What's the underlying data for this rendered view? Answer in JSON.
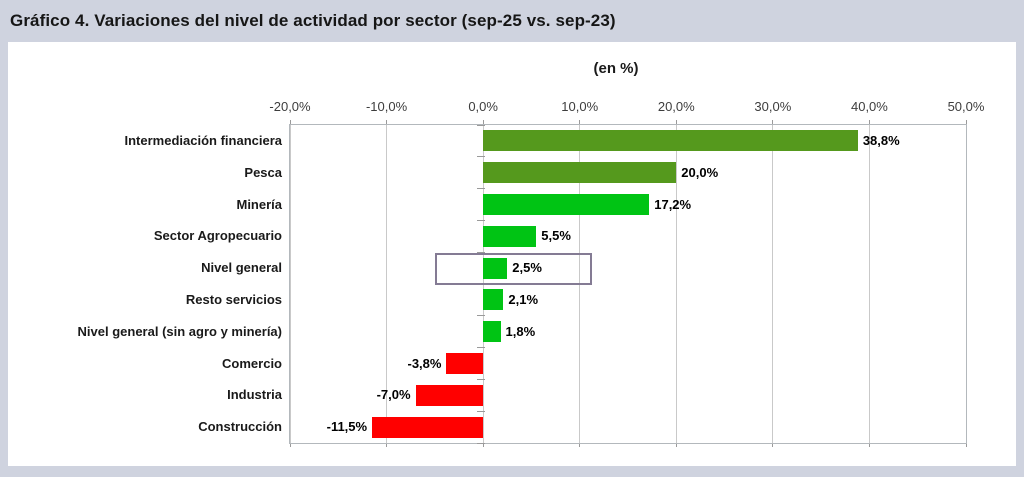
{
  "page": {
    "title": "Gráfico 4. Variaciones del nivel de actividad por sector (sep-25 vs. sep-23)",
    "background_color": "#cfd3df"
  },
  "chart_data": {
    "type": "bar",
    "orientation": "horizontal",
    "title": "Gráfico 4. Variaciones del nivel de actividad por sector (sep-25 vs. sep-23)",
    "subtitle": "(en %)",
    "categories": [
      "Intermediación financiera",
      "Pesca",
      "Minería",
      "Sector Agropecuario",
      "Nivel general",
      "Resto servicios",
      "Nivel general (sin agro y minería)",
      "Comercio",
      "Industria",
      "Construcción"
    ],
    "values": [
      38.8,
      20.0,
      17.2,
      5.5,
      2.5,
      2.1,
      1.8,
      -3.8,
      -7.0,
      -11.5
    ],
    "value_labels": [
      "38,8%",
      "20,0%",
      "17,2%",
      "5,5%",
      "2,5%",
      "2,1%",
      "1,8%",
      "-3,8%",
      "-7,0%",
      "-11,5%"
    ],
    "bar_colors": [
      "#55991d",
      "#55991d",
      "#00c414",
      "#00c414",
      "#00c414",
      "#00c414",
      "#00c414",
      "#ff0000",
      "#ff0000",
      "#ff0000"
    ],
    "xlim": [
      -20,
      50
    ],
    "x_ticks": [
      -20,
      -10,
      0,
      10,
      20,
      30,
      40,
      50
    ],
    "x_tick_labels": [
      "-20,0%",
      "-10,0%",
      "0,0%",
      "10,0%",
      "20,0%",
      "30,0%",
      "40,0%",
      "50,0%"
    ],
    "grid": true,
    "legend": "none",
    "colors": {
      "positive_strong": "#55991d",
      "positive": "#00c414",
      "negative": "#ff0000",
      "grid": "#c9c9c9",
      "highlight_border": "#847b94"
    },
    "highlight": {
      "category": "Nivel general",
      "x_from": -5.0,
      "x_to": 10.9
    }
  }
}
